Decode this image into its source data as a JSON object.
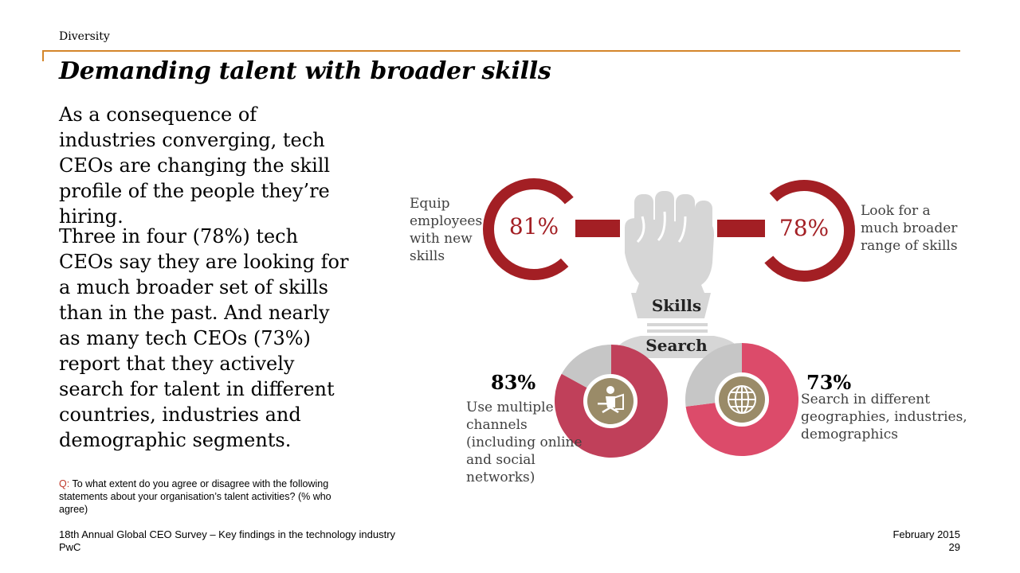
{
  "header": {
    "section": "Diversity",
    "title": "Demanding talent with broader skills"
  },
  "body": {
    "paragraph1": "As a consequence of industries converging, tech CEOs are changing the skill profile of the people they’re hiring.",
    "paragraph2": "Three in four (78%) tech CEOs say they are looking for a much broader set of skills than in the past. And nearly as many tech CEOs (73%) report that they actively search for talent in different countries, industries and demographic segments."
  },
  "question": {
    "prefix": "Q:",
    "text": "To what extent do you agree or disagree with the following statements about your organisation’s talent activities? (% who agree)"
  },
  "graphic": {
    "skills_word": "Skills",
    "search_word": "Search",
    "equip": {
      "value": "81%",
      "caption": "Equip employees with new skills"
    },
    "broader": {
      "value": "78%",
      "caption": "Look for a much broader range of skills"
    },
    "channels": {
      "value": "83%",
      "percent": 83,
      "caption": "Use multiple channels (including online and social networks)",
      "icon": "person-laptop-icon"
    },
    "geographies": {
      "value": "73%",
      "percent": 73,
      "caption": "Search in different geographies, industries, demographics",
      "icon": "globe-icon"
    },
    "colors": {
      "dark_red": "#a31f24",
      "rose": "#c0405a",
      "pink": "#dc4b6a",
      "grey": "#c6c6c6",
      "light_grey": "#d6d6d6",
      "icon_bg": "#9a8b68"
    }
  },
  "footer": {
    "survey": "18th Annual Global CEO Survey – Key findings in the technology industry",
    "company": "PwC",
    "date": "February 2015",
    "page": "29"
  }
}
